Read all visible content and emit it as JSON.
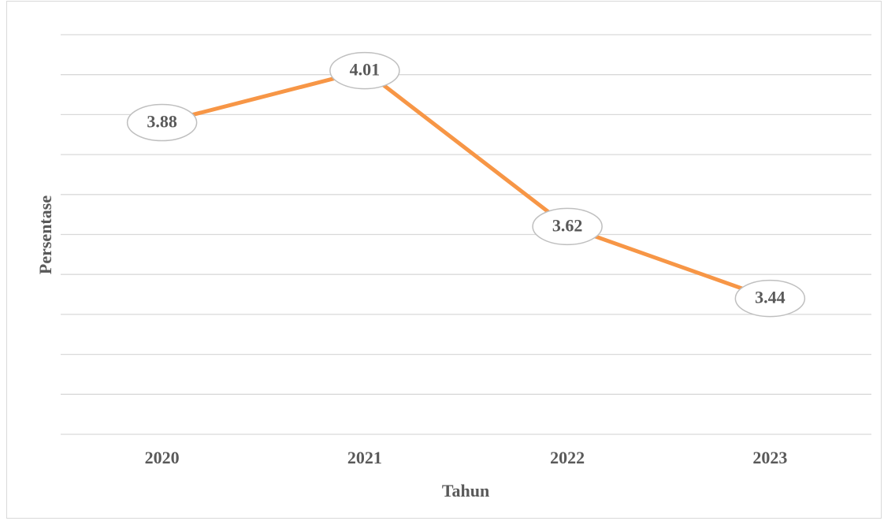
{
  "chart_data": {
    "type": "line",
    "x_label": "Tahun",
    "y_label": "Persentase",
    "categories": [
      "2020",
      "2021",
      "2022",
      "2023"
    ],
    "values": [
      3.88,
      4.01,
      3.62,
      3.44
    ],
    "color": "#f79646",
    "ylim": [
      3.1,
      4.1
    ],
    "yticks": [
      3.1,
      3.2,
      3.3,
      3.4,
      3.5,
      3.6,
      3.7,
      3.8,
      3.9,
      4.0,
      4.1
    ],
    "grid": true
  }
}
